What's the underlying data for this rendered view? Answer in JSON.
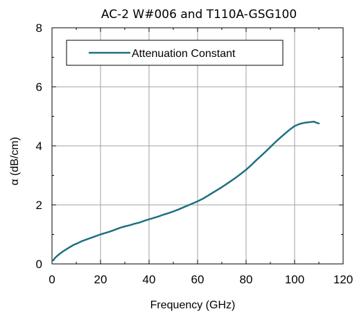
{
  "chart_data": {
    "type": "line",
    "title": "AC-2 W#006 and T110A-GSG100",
    "xlabel": "Frequency (GHz)",
    "ylabel": "α (dB/cm)",
    "xlim": [
      0,
      120
    ],
    "ylim": [
      0,
      8
    ],
    "x_ticks": [
      "0",
      "20",
      "40",
      "60",
      "80",
      "100",
      "120"
    ],
    "y_ticks": [
      "0",
      "2",
      "4",
      "6",
      "8"
    ],
    "grid": true,
    "legend_position": "top-left",
    "series": [
      {
        "name": "Attenuation Constant",
        "color": "#1e7080",
        "x": [
          0.5,
          1,
          2,
          3,
          4,
          5,
          6,
          7,
          8,
          9,
          10,
          12,
          14,
          16,
          18,
          20,
          22,
          24,
          26,
          28,
          30,
          32,
          34,
          36,
          38,
          40,
          42,
          44,
          46,
          48,
          50,
          52,
          54,
          56,
          58,
          60,
          62,
          64,
          66,
          68,
          70,
          72,
          74,
          76,
          78,
          80,
          82,
          84,
          86,
          88,
          90,
          92,
          94,
          96,
          98,
          100,
          102,
          104,
          106,
          108,
          109,
          110
        ],
        "y": [
          0.12,
          0.18,
          0.26,
          0.33,
          0.39,
          0.45,
          0.5,
          0.55,
          0.6,
          0.65,
          0.68,
          0.76,
          0.82,
          0.88,
          0.94,
          1.0,
          1.05,
          1.1,
          1.16,
          1.22,
          1.27,
          1.31,
          1.36,
          1.4,
          1.46,
          1.51,
          1.56,
          1.61,
          1.67,
          1.72,
          1.78,
          1.84,
          1.91,
          1.98,
          2.05,
          2.12,
          2.2,
          2.3,
          2.4,
          2.5,
          2.6,
          2.71,
          2.82,
          2.94,
          3.06,
          3.19,
          3.34,
          3.5,
          3.65,
          3.8,
          3.96,
          4.12,
          4.27,
          4.41,
          4.55,
          4.67,
          4.74,
          4.78,
          4.8,
          4.82,
          4.78,
          4.76
        ]
      }
    ]
  }
}
